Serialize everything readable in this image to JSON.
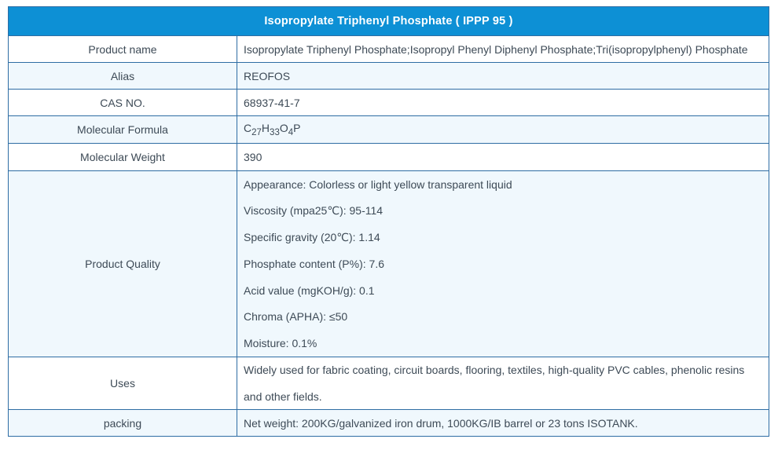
{
  "colors": {
    "header_bg": "#0d90d5",
    "header_text": "#ffffff",
    "border": "#2e6da4",
    "alt_row_bg": "#f0f8fd",
    "body_text": "#3d4a56"
  },
  "table": {
    "title": "Isopropylate Triphenyl Phosphate ( IPPP 95 )",
    "rows": [
      {
        "label": "Product name",
        "value": "Isopropylate Triphenyl Phosphate;Isopropyl Phenyl Diphenyl Phosphate;Tri(isopropylphenyl) Phosphate"
      },
      {
        "label": "Alias",
        "value": "REOFOS"
      },
      {
        "label": "CAS NO.",
        "value": "68937-41-7"
      },
      {
        "label": "Molecular Formula",
        "formula_plain": "C27H33O4P",
        "formula": [
          {
            "text": "C",
            "sub": false
          },
          {
            "text": "27",
            "sub": true
          },
          {
            "text": "H",
            "sub": false
          },
          {
            "text": "33",
            "sub": true
          },
          {
            "text": "O",
            "sub": false
          },
          {
            "text": "4",
            "sub": true
          },
          {
            "text": "P",
            "sub": false
          }
        ]
      },
      {
        "label": "Molecular Weight",
        "value": "390"
      },
      {
        "label": "Product Quality",
        "lines": [
          "Appearance: Colorless or light yellow transparent liquid",
          "Viscosity (mpa25℃): 95-114",
          "Specific gravity (20℃): 1.14",
          "Phosphate content (P%): 7.6",
          "Acid value (mgKOH/g): 0.1",
          "Chroma (APHA): ≤50",
          "Moisture: 0.1%"
        ]
      },
      {
        "label": "Uses",
        "value": "Widely used for fabric coating, circuit boards, flooring, textiles, high-quality PVC cables, phenolic resins and other fields."
      },
      {
        "label": "packing",
        "value": "Net weight: 200KG/galvanized iron drum, 1000KG/IB barrel or 23 tons ISOTANK."
      }
    ]
  }
}
